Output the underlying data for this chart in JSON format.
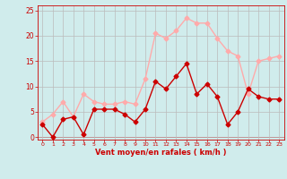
{
  "x": [
    0,
    1,
    2,
    3,
    4,
    5,
    6,
    7,
    8,
    9,
    10,
    11,
    12,
    13,
    14,
    15,
    16,
    17,
    18,
    19,
    20,
    21,
    22,
    23
  ],
  "wind_avg": [
    2.5,
    0,
    3.5,
    4,
    0.5,
    5.5,
    5.5,
    5.5,
    4.5,
    3,
    5.5,
    11,
    9.5,
    12,
    14.5,
    8.5,
    10.5,
    8,
    2.5,
    5,
    9.5,
    8,
    7.5,
    7.5
  ],
  "wind_gust": [
    3,
    4.5,
    7,
    4,
    8.5,
    7,
    6.5,
    6.5,
    7,
    6.5,
    11.5,
    20.5,
    19.5,
    21,
    23.5,
    22.5,
    22.5,
    19.5,
    17,
    16,
    8.5,
    15,
    15.5,
    16
  ],
  "avg_color": "#cc0000",
  "gust_color": "#ffaaaa",
  "bg_color": "#d0ecec",
  "grid_color": "#bbbbbb",
  "xlabel": "Vent moyen/en rafales ( km/h )",
  "xlabel_color": "#cc0000",
  "tick_color": "#cc0000",
  "ylim": [
    -0.5,
    26
  ],
  "yticks": [
    0,
    5,
    10,
    15,
    20,
    25
  ],
  "marker_size": 2.5,
  "linewidth": 1.0
}
